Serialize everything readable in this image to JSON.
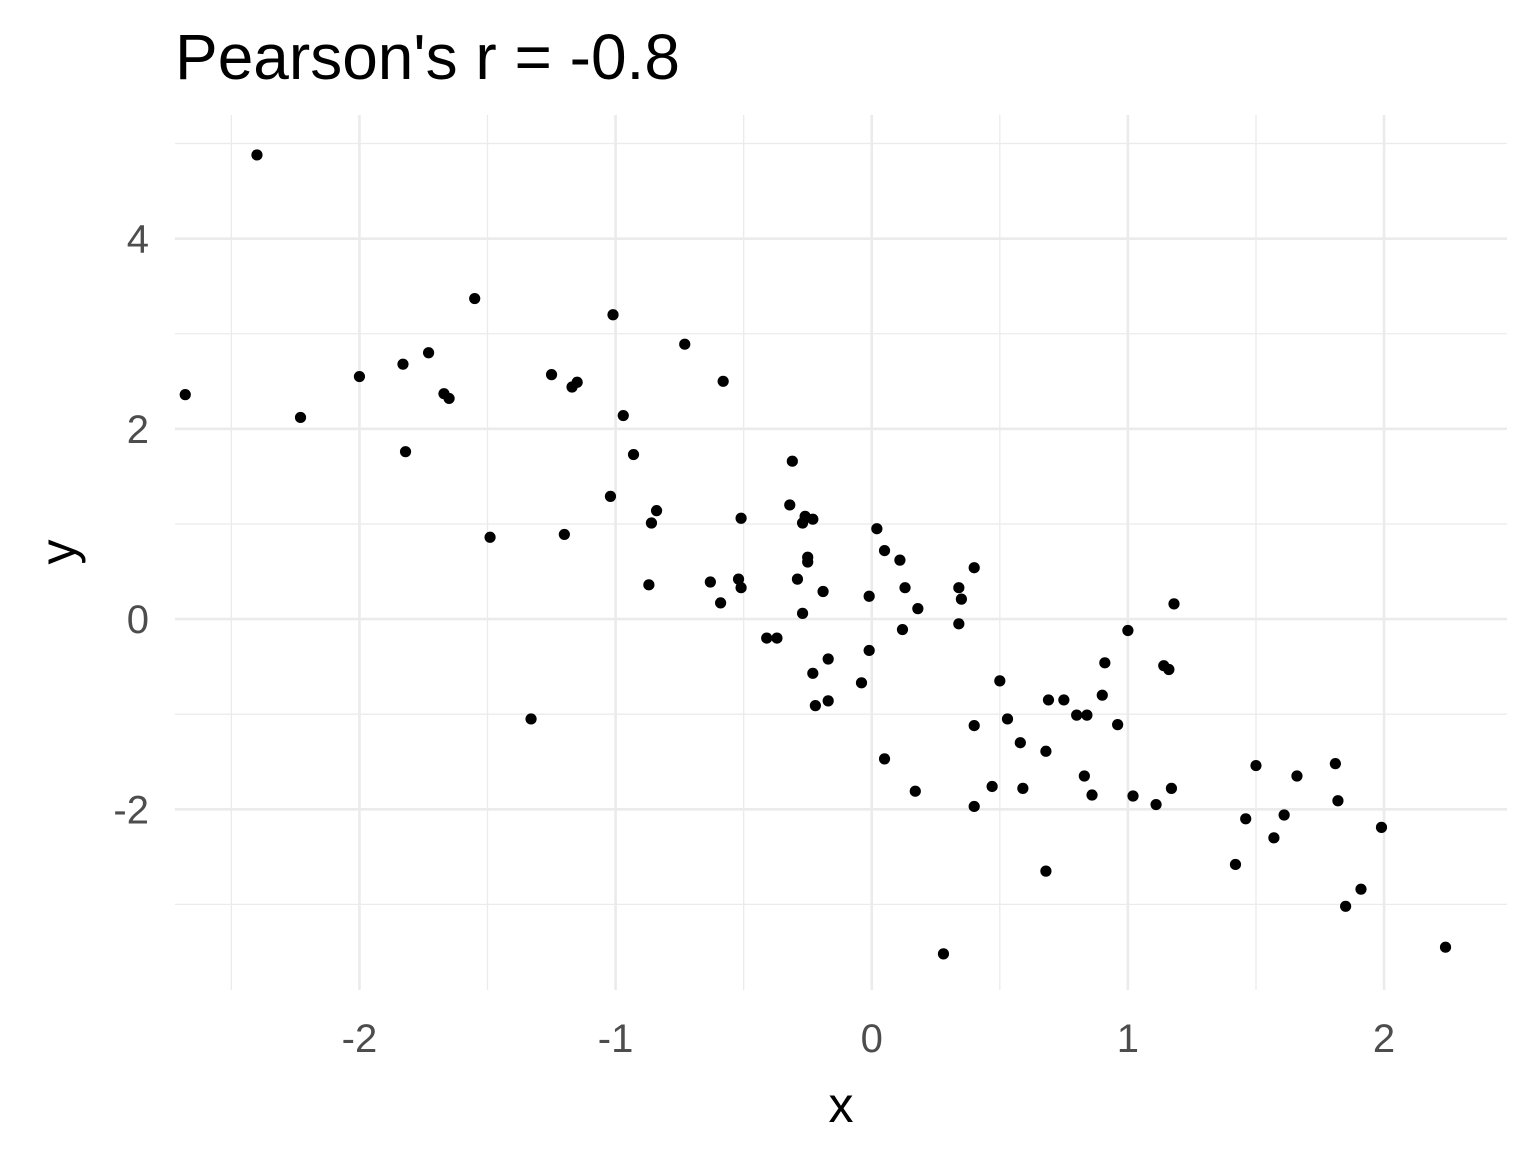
{
  "chart_data": {
    "type": "scatter",
    "title": "Pearson's r = -0.8",
    "xlabel": "x",
    "ylabel": "y",
    "xlim": [
      -2.72,
      2.48
    ],
    "ylim": [
      -3.9,
      5.3
    ],
    "x_ticks": [
      -2,
      -1,
      0,
      1,
      2
    ],
    "x_tick_labels": [
      "-2",
      "-1",
      "0",
      "1",
      "2"
    ],
    "y_ticks": [
      -2,
      0,
      2,
      4
    ],
    "y_tick_labels": [
      "-2",
      "0",
      "2",
      "4"
    ],
    "grid": true,
    "legend": "none",
    "point_color": "#000000",
    "points": [
      {
        "x": -2.4,
        "y": 4.88
      },
      {
        "x": -2.68,
        "y": 2.36
      },
      {
        "x": -2.23,
        "y": 2.12
      },
      {
        "x": -2.0,
        "y": 2.55
      },
      {
        "x": -1.83,
        "y": 2.68
      },
      {
        "x": -1.73,
        "y": 2.8
      },
      {
        "x": -1.67,
        "y": 2.37
      },
      {
        "x": -1.65,
        "y": 2.32
      },
      {
        "x": -1.82,
        "y": 1.76
      },
      {
        "x": -1.55,
        "y": 3.37
      },
      {
        "x": -1.49,
        "y": 0.86
      },
      {
        "x": -1.33,
        "y": -1.05
      },
      {
        "x": -1.25,
        "y": 2.57
      },
      {
        "x": -1.2,
        "y": 0.89
      },
      {
        "x": -1.17,
        "y": 2.44
      },
      {
        "x": -1.15,
        "y": 2.49
      },
      {
        "x": -1.01,
        "y": 3.2
      },
      {
        "x": -1.02,
        "y": 1.29
      },
      {
        "x": -0.97,
        "y": 2.14
      },
      {
        "x": -0.93,
        "y": 1.73
      },
      {
        "x": -0.87,
        "y": 0.36
      },
      {
        "x": -0.86,
        "y": 1.01
      },
      {
        "x": -0.84,
        "y": 1.14
      },
      {
        "x": -0.73,
        "y": 2.89
      },
      {
        "x": -0.63,
        "y": 0.39
      },
      {
        "x": -0.59,
        "y": 0.17
      },
      {
        "x": -0.58,
        "y": 2.5
      },
      {
        "x": -0.52,
        "y": 0.42
      },
      {
        "x": -0.51,
        "y": 0.33
      },
      {
        "x": -0.51,
        "y": 1.06
      },
      {
        "x": -0.41,
        "y": -0.2
      },
      {
        "x": -0.37,
        "y": -0.2
      },
      {
        "x": -0.31,
        "y": 1.66
      },
      {
        "x": -0.32,
        "y": 1.2
      },
      {
        "x": -0.29,
        "y": 0.42
      },
      {
        "x": -0.27,
        "y": 1.01
      },
      {
        "x": -0.26,
        "y": 1.08
      },
      {
        "x": -0.27,
        "y": 0.06
      },
      {
        "x": -0.25,
        "y": 0.65
      },
      {
        "x": -0.25,
        "y": 0.6
      },
      {
        "x": -0.23,
        "y": 1.05
      },
      {
        "x": -0.23,
        "y": -0.57
      },
      {
        "x": -0.22,
        "y": -0.91
      },
      {
        "x": -0.19,
        "y": 0.29
      },
      {
        "x": -0.17,
        "y": -0.42
      },
      {
        "x": -0.17,
        "y": -0.86
      },
      {
        "x": -0.04,
        "y": -0.67
      },
      {
        "x": -0.01,
        "y": 0.24
      },
      {
        "x": -0.01,
        "y": -0.33
      },
      {
        "x": 0.02,
        "y": 0.95
      },
      {
        "x": 0.05,
        "y": 0.72
      },
      {
        "x": 0.05,
        "y": -1.47
      },
      {
        "x": 0.11,
        "y": 0.62
      },
      {
        "x": 0.12,
        "y": -0.11
      },
      {
        "x": 0.13,
        "y": 0.33
      },
      {
        "x": 0.18,
        "y": 0.11
      },
      {
        "x": 0.17,
        "y": -1.81
      },
      {
        "x": 0.28,
        "y": -3.52
      },
      {
        "x": 0.34,
        "y": 0.33
      },
      {
        "x": 0.35,
        "y": 0.21
      },
      {
        "x": 0.34,
        "y": -0.05
      },
      {
        "x": 0.4,
        "y": 0.54
      },
      {
        "x": 0.4,
        "y": -1.12
      },
      {
        "x": 0.4,
        "y": -1.97
      },
      {
        "x": 0.47,
        "y": -1.76
      },
      {
        "x": 0.5,
        "y": -0.65
      },
      {
        "x": 0.53,
        "y": -1.05
      },
      {
        "x": 0.58,
        "y": -1.3
      },
      {
        "x": 0.59,
        "y": -1.78
      },
      {
        "x": 0.68,
        "y": -1.39
      },
      {
        "x": 0.68,
        "y": -2.65
      },
      {
        "x": 0.69,
        "y": -0.85
      },
      {
        "x": 0.75,
        "y": -0.85
      },
      {
        "x": 0.8,
        "y": -1.01
      },
      {
        "x": 0.84,
        "y": -1.01
      },
      {
        "x": 0.83,
        "y": -1.65
      },
      {
        "x": 0.86,
        "y": -1.85
      },
      {
        "x": 0.9,
        "y": -0.8
      },
      {
        "x": 0.91,
        "y": -0.46
      },
      {
        "x": 0.96,
        "y": -1.11
      },
      {
        "x": 1.0,
        "y": -0.12
      },
      {
        "x": 1.02,
        "y": -1.86
      },
      {
        "x": 1.11,
        "y": -1.95
      },
      {
        "x": 1.14,
        "y": -0.49
      },
      {
        "x": 1.16,
        "y": -0.53
      },
      {
        "x": 1.17,
        "y": -1.78
      },
      {
        "x": 1.18,
        "y": 0.16
      },
      {
        "x": 1.42,
        "y": -2.58
      },
      {
        "x": 1.46,
        "y": -2.1
      },
      {
        "x": 1.5,
        "y": -1.54
      },
      {
        "x": 1.57,
        "y": -2.3
      },
      {
        "x": 1.61,
        "y": -2.06
      },
      {
        "x": 1.66,
        "y": -1.65
      },
      {
        "x": 1.81,
        "y": -1.52
      },
      {
        "x": 1.82,
        "y": -1.91
      },
      {
        "x": 1.85,
        "y": -3.02
      },
      {
        "x": 1.91,
        "y": -2.84
      },
      {
        "x": 1.99,
        "y": -2.19
      },
      {
        "x": 2.24,
        "y": -3.45
      }
    ]
  }
}
